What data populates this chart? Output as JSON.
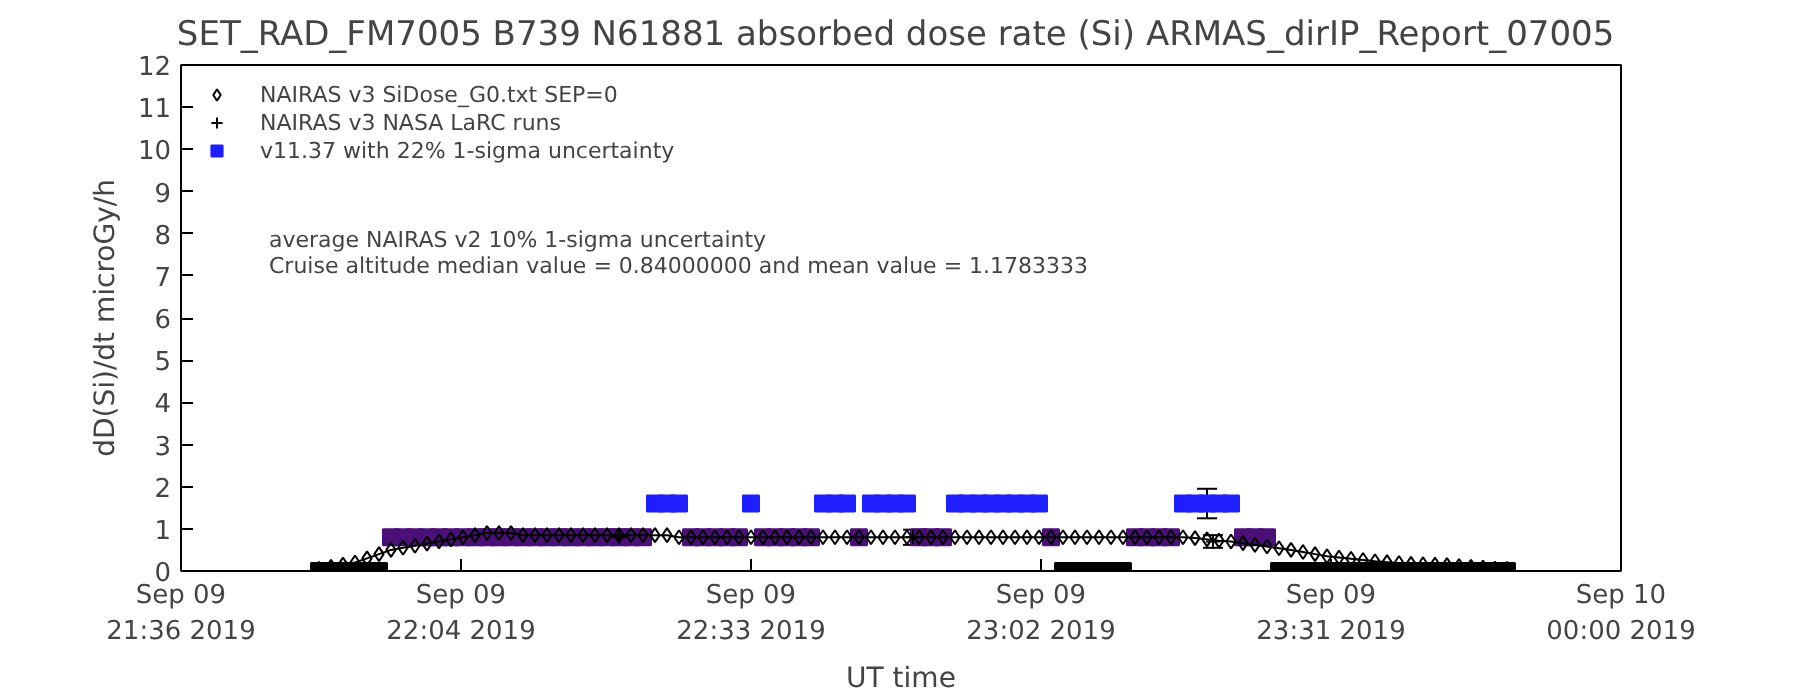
{
  "chart_data": {
    "type": "line",
    "title": "SET_RAD_FM7005  B739 N61881 absorbed dose rate (Si) ARMAS_dirIP_Report_07005",
    "xlabel": "UT time",
    "ylabel": "dD(Si)/dt microGy/h",
    "xlim": [
      "2019-09-09T21:36",
      "2019-09-10T00:00"
    ],
    "ylim": [
      0,
      12
    ],
    "xticks": [
      {
        "value": "2019-09-09T21:36",
        "label": "Sep 09\n21:36 2019"
      },
      {
        "value": "2019-09-09T22:04",
        "label": "Sep 09\n22:04 2019"
      },
      {
        "value": "2019-09-09T22:33",
        "label": "Sep 09\n22:33 2019"
      },
      {
        "value": "2019-09-09T23:02",
        "label": "Sep 09\n23:02 2019"
      },
      {
        "value": "2019-09-09T23:31",
        "label": "Sep 09\n23:31 2019"
      },
      {
        "value": "2019-09-10T00:00",
        "label": "Sep 10\n00:00 2019"
      }
    ],
    "yticks": [
      0,
      1,
      2,
      3,
      4,
      5,
      6,
      7,
      8,
      9,
      10,
      11,
      12
    ],
    "grid": false,
    "legend": "top left",
    "annotations": [
      "average NAIRAS v2 10% 1-sigma uncertainty",
      "Cruise altitude median value = 0.84000000 and mean value = 1.1783333"
    ],
    "x": [
      "2019-09-09T21:49:48",
      "2019-09-09T21:51:00",
      "2019-09-09T21:52:12",
      "2019-09-09T21:53:24",
      "2019-09-09T21:54:36",
      "2019-09-09T21:55:48",
      "2019-09-09T21:57:00",
      "2019-09-09T21:58:12",
      "2019-09-09T21:59:24",
      "2019-09-09T22:00:36",
      "2019-09-09T22:01:48",
      "2019-09-09T22:03:00",
      "2019-09-09T22:04:12",
      "2019-09-09T22:05:24",
      "2019-09-09T22:06:36",
      "2019-09-09T22:07:48",
      "2019-09-09T22:09:00",
      "2019-09-09T22:10:12",
      "2019-09-09T22:11:24",
      "2019-09-09T22:12:36",
      "2019-09-09T22:13:48",
      "2019-09-09T22:15:00",
      "2019-09-09T22:16:12",
      "2019-09-09T22:17:24",
      "2019-09-09T22:18:36",
      "2019-09-09T22:19:48",
      "2019-09-09T22:21:00",
      "2019-09-09T22:22:12",
      "2019-09-09T22:23:24",
      "2019-09-09T22:24:36",
      "2019-09-09T22:25:48",
      "2019-09-09T22:27:00",
      "2019-09-09T22:28:12",
      "2019-09-09T22:29:24",
      "2019-09-09T22:30:36",
      "2019-09-09T22:31:48",
      "2019-09-09T22:33:00",
      "2019-09-09T22:34:12",
      "2019-09-09T22:35:24",
      "2019-09-09T22:36:36",
      "2019-09-09T22:37:48",
      "2019-09-09T22:39:00",
      "2019-09-09T22:40:12",
      "2019-09-09T22:41:24",
      "2019-09-09T22:42:36",
      "2019-09-09T22:43:48",
      "2019-09-09T22:45:00",
      "2019-09-09T22:46:12",
      "2019-09-09T22:47:24",
      "2019-09-09T22:48:36",
      "2019-09-09T22:49:48",
      "2019-09-09T22:51:00",
      "2019-09-09T22:52:12",
      "2019-09-09T22:53:24",
      "2019-09-09T22:54:36",
      "2019-09-09T22:55:48",
      "2019-09-09T22:57:00",
      "2019-09-09T22:58:12",
      "2019-09-09T22:59:24",
      "2019-09-09T23:00:36",
      "2019-09-09T23:01:48",
      "2019-09-09T23:03:00",
      "2019-09-09T23:04:12",
      "2019-09-09T23:05:24",
      "2019-09-09T23:06:36",
      "2019-09-09T23:07:48",
      "2019-09-09T23:09:00",
      "2019-09-09T23:10:12",
      "2019-09-09T23:11:24",
      "2019-09-09T23:12:36",
      "2019-09-09T23:13:48",
      "2019-09-09T23:15:00",
      "2019-09-09T23:16:12",
      "2019-09-09T23:17:24",
      "2019-09-09T23:18:36",
      "2019-09-09T23:19:48",
      "2019-09-09T23:21:00",
      "2019-09-09T23:22:12",
      "2019-09-09T23:23:24",
      "2019-09-09T23:24:36",
      "2019-09-09T23:25:48",
      "2019-09-09T23:27:00",
      "2019-09-09T23:28:12",
      "2019-09-09T23:29:24",
      "2019-09-09T23:30:36",
      "2019-09-09T23:31:48",
      "2019-09-09T23:33:00",
      "2019-09-09T23:34:12",
      "2019-09-09T23:35:24",
      "2019-09-09T23:36:36",
      "2019-09-09T23:37:48",
      "2019-09-09T23:39:00",
      "2019-09-09T23:40:12",
      "2019-09-09T23:41:24",
      "2019-09-09T23:42:36",
      "2019-09-09T23:43:48",
      "2019-09-09T23:45:00",
      "2019-09-09T23:46:12",
      "2019-09-09T23:47:24",
      "2019-09-09T23:48:36"
    ],
    "series": [
      {
        "name": "NAIRAS v3 SiDose_G0.txt SEP=0",
        "marker": "diamond",
        "color": "#000000",
        "values": [
          0.05,
          0.1,
          0.15,
          0.2,
          0.3,
          0.4,
          0.5,
          0.55,
          0.6,
          0.65,
          0.7,
          0.75,
          0.8,
          0.85,
          0.9,
          0.9,
          0.9,
          0.85,
          0.85,
          0.85,
          0.85,
          0.85,
          0.85,
          0.85,
          0.85,
          0.85,
          0.85,
          0.85,
          0.85,
          0.85,
          0.8,
          0.8,
          0.8,
          0.8,
          0.8,
          0.8,
          0.8,
          0.8,
          0.8,
          0.8,
          0.8,
          0.8,
          0.8,
          0.8,
          0.8,
          0.8,
          0.8,
          0.8,
          0.8,
          0.8,
          0.8,
          0.8,
          0.8,
          0.8,
          0.8,
          0.8,
          0.8,
          0.8,
          0.8,
          0.8,
          0.8,
          0.8,
          0.8,
          0.8,
          0.8,
          0.8,
          0.8,
          0.8,
          0.8,
          0.8,
          0.8,
          0.8,
          0.8,
          0.78,
          0.75,
          0.72,
          0.7,
          0.66,
          0.62,
          0.58,
          0.54,
          0.5,
          0.45,
          0.4,
          0.35,
          0.32,
          0.29,
          0.26,
          0.23,
          0.21,
          0.19,
          0.17,
          0.16,
          0.15,
          0.14,
          0.12,
          0.1,
          0.08,
          0.06,
          0.05
        ]
      },
      {
        "name": "NAIRAS v3 NASA LaRC runs",
        "type": "scatter",
        "marker": "cross",
        "color": "#000000",
        "x": [
          "2019-09-09T22:19:48",
          "2019-09-09T22:49:12",
          "2019-09-09T23:19:12"
        ],
        "values": [
          0.8,
          0.8,
          0.7
        ],
        "errors": [
          0.18,
          0.18,
          0.15
        ]
      },
      {
        "name": "v11.37 with 22% 1-sigma uncertainty",
        "type": "scatter",
        "marker": "square",
        "color": "#1e1eff",
        "values": [
          0,
          0,
          0,
          0,
          0,
          0,
          0.8,
          0.8,
          0.8,
          0.8,
          0.8,
          0.8,
          0.8,
          0.8,
          0.8,
          0.8,
          0.8,
          0.8,
          0.8,
          0.8,
          0.8,
          0.8,
          0.8,
          0.8,
          0.8,
          0.8,
          0.8,
          0.8,
          1.6,
          1.6,
          1.6,
          0.8,
          0.8,
          0.8,
          0.8,
          0.8,
          1.6,
          0.8,
          0.8,
          0.8,
          0.8,
          0.8,
          1.6,
          1.6,
          1.6,
          0.8,
          1.6,
          1.6,
          1.6,
          1.6,
          0.8,
          0.8,
          0.8,
          1.6,
          1.6,
          1.6,
          1.6,
          1.6,
          1.6,
          1.6,
          1.6,
          0.8,
          0,
          0,
          0,
          0,
          0,
          0,
          0.8,
          0.8,
          0.8,
          0.8,
          1.6,
          1.6,
          1.6,
          1.6,
          1.6,
          0.8,
          0.8,
          0.8,
          0,
          0,
          0,
          0,
          0,
          0,
          0,
          0,
          0,
          0,
          0,
          0,
          0,
          0,
          0,
          0,
          0,
          0,
          0,
          0
        ],
        "colors": [
          "#000000",
          "#000000",
          "#000000",
          "#000000",
          "#000000",
          "#000000",
          "#4b0f78",
          "#4b0f78",
          "#4b0f78",
          "#4b0f78",
          "#4b0f78",
          "#4b0f78",
          "#4b0f78",
          "#4b0f78",
          "#4b0f78",
          "#4b0f78",
          "#4b0f78",
          "#4b0f78",
          "#4b0f78",
          "#4b0f78",
          "#4b0f78",
          "#4b0f78",
          "#4b0f78",
          "#4b0f78",
          "#4b0f78",
          "#4b0f78",
          "#4b0f78",
          "#4b0f78",
          "#1e1eff",
          "#1e1eff",
          "#1e1eff",
          "#4b0f78",
          "#4b0f78",
          "#4b0f78",
          "#4b0f78",
          "#4b0f78",
          "#1e1eff",
          "#4b0f78",
          "#4b0f78",
          "#4b0f78",
          "#4b0f78",
          "#4b0f78",
          "#1e1eff",
          "#1e1eff",
          "#1e1eff",
          "#4b0f78",
          "#1e1eff",
          "#1e1eff",
          "#1e1eff",
          "#1e1eff",
          "#4b0f78",
          "#4b0f78",
          "#4b0f78",
          "#1e1eff",
          "#1e1eff",
          "#1e1eff",
          "#1e1eff",
          "#1e1eff",
          "#1e1eff",
          "#1e1eff",
          "#1e1eff",
          "#4b0f78",
          "#000000",
          "#000000",
          "#000000",
          "#000000",
          "#000000",
          "#000000",
          "#4b0f78",
          "#4b0f78",
          "#4b0f78",
          "#4b0f78",
          "#1e1eff",
          "#1e1eff",
          "#1e1eff",
          "#1e1eff",
          "#1e1eff",
          "#4b0f78",
          "#4b0f78",
          "#4b0f78",
          "#000000",
          "#000000",
          "#000000",
          "#000000",
          "#000000",
          "#000000",
          "#000000",
          "#000000",
          "#000000",
          "#000000",
          "#000000",
          "#000000",
          "#000000",
          "#000000",
          "#000000",
          "#000000",
          "#000000",
          "#000000",
          "#000000",
          "#000000"
        ],
        "errors": [
          null,
          null,
          null,
          null,
          null,
          null,
          null,
          null,
          null,
          null,
          null,
          null,
          null,
          null,
          null,
          null,
          null,
          null,
          null,
          null,
          null,
          null,
          null,
          null,
          null,
          null,
          null,
          null,
          null,
          null,
          null,
          null,
          null,
          null,
          null,
          null,
          null,
          null,
          null,
          null,
          null,
          null,
          null,
          null,
          null,
          null,
          null,
          null,
          null,
          null,
          null,
          null,
          null,
          null,
          null,
          null,
          null,
          null,
          null,
          null,
          null,
          null,
          null,
          null,
          null,
          null,
          null,
          null,
          null,
          null,
          null,
          null,
          null,
          null,
          0.35,
          null,
          null,
          null,
          null,
          null,
          null,
          null,
          null,
          null,
          null,
          null,
          null,
          null,
          null,
          null,
          null,
          null,
          null,
          null,
          null,
          null,
          null,
          null,
          null,
          null
        ]
      }
    ]
  }
}
